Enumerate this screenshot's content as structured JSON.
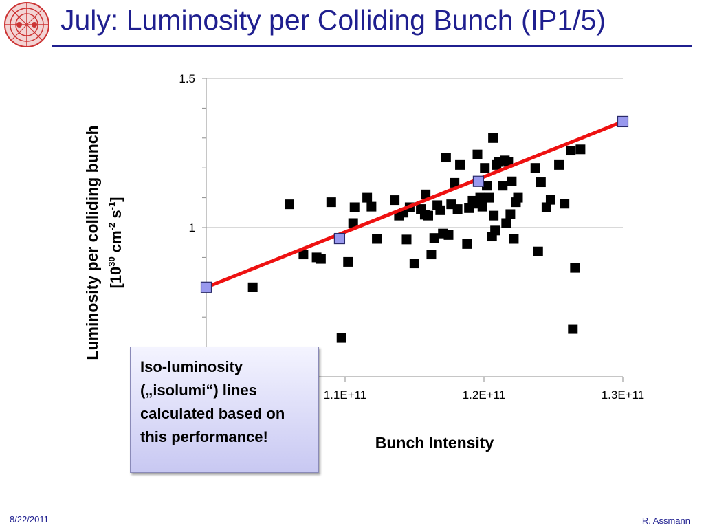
{
  "slide": {
    "title": "July: Luminosity per Colliding Bunch (IP1/5)",
    "date": "8/22/2011",
    "author": "R. Assmann",
    "callout": "Iso-luminosity („isolumi“) lines calculated based on this performance!",
    "title_color": "#1f1f8f"
  },
  "chart_data": {
    "type": "scatter",
    "title": "",
    "xlabel": "Bunch Intensity",
    "ylabel_main": "Luminosity per colliding bunch",
    "ylabel_unit": {
      "open": "[10",
      "exp1": "30",
      "mid": " cm",
      "exp2": "-2",
      "mid2": " s",
      "exp3": "-1",
      "close": "]"
    },
    "xlim": [
      100000000000.0,
      130000000000.0
    ],
    "ylim": [
      0.5,
      1.5
    ],
    "xticks": [
      110000000000.0,
      120000000000.0,
      130000000000.0
    ],
    "xtick_labels": [
      "1.1E+11",
      "1.2E+11",
      "1.3E+11"
    ],
    "yticks": [
      1,
      1.5
    ],
    "ytick_labels": [
      "1",
      "1.5"
    ],
    "grid": "horizontal",
    "series": [
      {
        "marker": "square",
        "color": "#000000",
        "points": [
          [
            103350000000.0,
            0.8
          ],
          [
            105990000000.0,
            1.078
          ],
          [
            107000000000.0,
            0.91
          ],
          [
            107950000000.0,
            0.9
          ],
          [
            108260000000.0,
            0.895
          ],
          [
            109000000000.0,
            1.085
          ],
          [
            109740000000.0,
            0.63
          ],
          [
            110210000000.0,
            0.885
          ],
          [
            110580000000.0,
            1.015
          ],
          [
            110680000000.0,
            1.068
          ],
          [
            111590000000.0,
            1.1
          ],
          [
            111900000000.0,
            1.07
          ],
          [
            112280000000.0,
            0.962
          ],
          [
            113570000000.0,
            1.092
          ],
          [
            113880000000.0,
            1.04
          ],
          [
            114210000000.0,
            1.05
          ],
          [
            114430000000.0,
            0.96
          ],
          [
            114650000000.0,
            1.068
          ],
          [
            114990000000.0,
            0.88
          ],
          [
            115450000000.0,
            1.062
          ],
          [
            115740000000.0,
            1.043
          ],
          [
            115800000000.0,
            1.111
          ],
          [
            115990000000.0,
            1.04
          ],
          [
            116210000000.0,
            0.91
          ],
          [
            116420000000.0,
            0.965
          ],
          [
            116640000000.0,
            1.075
          ],
          [
            116850000000.0,
            1.058
          ],
          [
            117040000000.0,
            0.98
          ],
          [
            117270000000.0,
            1.235
          ],
          [
            117450000000.0,
            0.975
          ],
          [
            117640000000.0,
            1.078
          ],
          [
            117880000000.0,
            1.15
          ],
          [
            118100000000.0,
            1.062
          ],
          [
            118270000000.0,
            1.21
          ],
          [
            118780000000.0,
            0.945
          ],
          [
            118920000000.0,
            1.065
          ],
          [
            119180000000.0,
            1.09
          ],
          [
            119410000000.0,
            1.08
          ],
          [
            119530000000.0,
            1.245
          ],
          [
            119730000000.0,
            1.1
          ],
          [
            119890000000.0,
            1.07
          ],
          [
            120060000000.0,
            1.2
          ],
          [
            120200000000.0,
            1.14
          ],
          [
            120370000000.0,
            1.1
          ],
          [
            120580000000.0,
            0.97
          ],
          [
            120650000000.0,
            1.3
          ],
          [
            120700000000.0,
            1.04
          ],
          [
            120800000000.0,
            0.99
          ],
          [
            120900000000.0,
            1.21
          ],
          [
            121050000000.0,
            1.22
          ],
          [
            121350000000.0,
            1.14
          ],
          [
            121500000000.0,
            1.225
          ],
          [
            121600000000.0,
            1.015
          ],
          [
            121750000000.0,
            1.22
          ],
          [
            121900000000.0,
            1.045
          ],
          [
            122000000000.0,
            1.155
          ],
          [
            122150000000.0,
            0.962
          ],
          [
            122300000000.0,
            1.085
          ],
          [
            122450000000.0,
            1.1
          ],
          [
            123700000000.0,
            1.2
          ],
          [
            123900000000.0,
            0.92
          ],
          [
            124100000000.0,
            1.152
          ],
          [
            124500000000.0,
            1.068
          ],
          [
            124800000000.0,
            1.093
          ],
          [
            125400000000.0,
            1.21
          ],
          [
            125800000000.0,
            1.08
          ],
          [
            126250000000.0,
            1.258
          ],
          [
            126400000000.0,
            0.66
          ],
          [
            126550000000.0,
            0.865
          ],
          [
            126950000000.0,
            1.262
          ]
        ]
      },
      {
        "marker": "square-open",
        "color": "#9999ee",
        "points": [
          [
            100000000000.0,
            0.8
          ],
          [
            109600000000.0,
            0.963
          ],
          [
            119600000000.0,
            1.155
          ],
          [
            130000000000.0,
            1.355
          ]
        ]
      }
    ],
    "fit_line": {
      "from": [
        100000000000.0,
        0.8
      ],
      "to": [
        130000000000.0,
        1.355
      ],
      "color": "#ee1111"
    }
  }
}
